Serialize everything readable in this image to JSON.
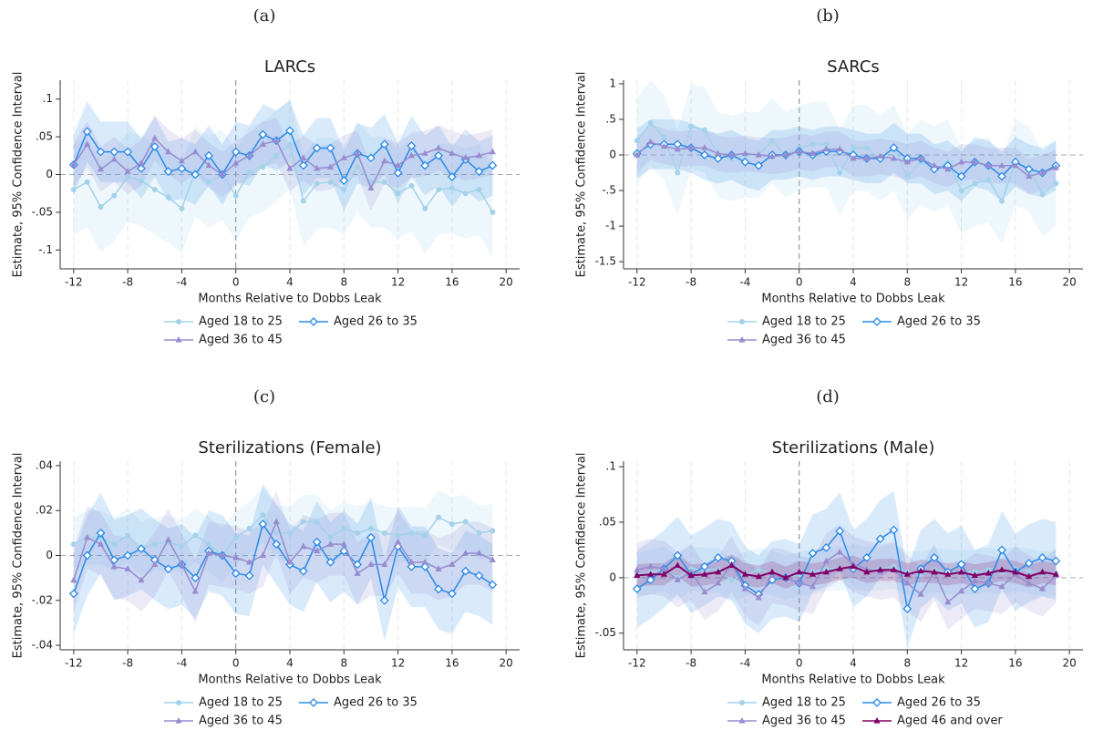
{
  "chart_data": [
    {
      "type": "line",
      "label": "(a)",
      "title": "LARCs",
      "xlabel": "Months Relative to Dobbs Leak",
      "ylabel": "Estimate, 95% Confidence Interval",
      "x": [
        -12,
        -11,
        -10,
        -9,
        -8,
        -7,
        -6,
        -5,
        -4,
        -3,
        -2,
        -1,
        0,
        1,
        2,
        3,
        4,
        5,
        6,
        7,
        8,
        9,
        10,
        11,
        12,
        13,
        14,
        15,
        16,
        17,
        18,
        19
      ],
      "xlim": [
        -13,
        21
      ],
      "xticks": [
        -12,
        -8,
        -4,
        0,
        4,
        8,
        12,
        16,
        20
      ],
      "ylim": [
        -0.125,
        0.125
      ],
      "yticks": [
        {
          "value": -0.1,
          "label": "-.1"
        },
        {
          "value": -0.05,
          "label": "-.05"
        },
        0,
        {
          "value": 0.05,
          "label": ".05"
        },
        {
          "value": 0.1,
          "label": ".1"
        }
      ],
      "vline": 0,
      "hline": 0,
      "grid": "x",
      "legend": "bottom",
      "series": [
        {
          "name": "Aged 18 to 25",
          "color": "#a3d2ea",
          "marker": "circle",
          "ci_halfwidth": 0.06,
          "values": [
            -0.02,
            -0.01,
            -0.043,
            -0.028,
            -0.003,
            -0.008,
            -0.02,
            -0.03,
            -0.045,
            0.004,
            -0.01,
            0,
            -0.028,
            0.003,
            0.01,
            0.025,
            0.04,
            -0.035,
            -0.012,
            -0.01,
            -0.02,
            0.01,
            -0.01,
            -0.01,
            -0.025,
            -0.015,
            -0.045,
            -0.02,
            -0.018,
            -0.025,
            -0.02,
            -0.05
          ]
        },
        {
          "name": "Aged 26 to 35",
          "color": "#2a8ae8",
          "marker": "diamond",
          "ci_halfwidth": 0.04,
          "values": [
            0.013,
            0.057,
            0.03,
            0.03,
            0.03,
            0.008,
            0.037,
            0.004,
            0.008,
            0,
            0.025,
            0,
            0.03,
            0.025,
            0.053,
            0.045,
            0.058,
            0.012,
            0.035,
            0.035,
            -0.008,
            0.028,
            0.022,
            0.04,
            0.002,
            0.038,
            0.012,
            0.025,
            -0.003,
            0.02,
            0.004,
            0.012
          ]
        },
        {
          "name": "Aged 36 to 45",
          "color": "#978cd0",
          "marker": "triangle",
          "ci_halfwidth": 0.03,
          "values": [
            0.013,
            0.04,
            0.007,
            0.02,
            0.004,
            0.015,
            0.048,
            0.03,
            0.018,
            0.03,
            0.012,
            0,
            0.015,
            0.025,
            0.04,
            0.045,
            0.008,
            0.022,
            0.008,
            0.01,
            0.022,
            0.028,
            -0.018,
            0.018,
            0.012,
            0.025,
            0.028,
            0.035,
            0.028,
            0.022,
            0.025,
            0.03
          ]
        }
      ]
    },
    {
      "type": "line",
      "label": "(b)",
      "title": "SARCs",
      "xlabel": "Months Relative to Dobbs Leak",
      "ylabel": "Estimate, 95% Confidence Interval",
      "x": [
        -12,
        -11,
        -10,
        -9,
        -8,
        -7,
        -6,
        -5,
        -4,
        -3,
        -2,
        -1,
        0,
        1,
        2,
        3,
        4,
        5,
        6,
        7,
        8,
        9,
        10,
        11,
        12,
        13,
        14,
        15,
        16,
        17,
        18,
        19
      ],
      "xlim": [
        -13,
        21
      ],
      "xticks": [
        -12,
        -8,
        -4,
        0,
        4,
        8,
        12,
        16,
        20
      ],
      "ylim": [
        -1.6,
        1.05
      ],
      "yticks": [
        -1.5,
        -1,
        {
          "value": -0.5,
          "label": "-.5"
        },
        0,
        {
          "value": 0.5,
          "label": ".5"
        },
        1
      ],
      "vline": 0,
      "hline": 0,
      "grid": "x",
      "legend": "bottom",
      "series": [
        {
          "name": "Aged 18 to 25",
          "color": "#a3d2ea",
          "marker": "circle",
          "ci_halfwidth": 0.6,
          "values": [
            0.2,
            0.45,
            0.25,
            -0.25,
            0.4,
            0.35,
            0,
            -0.05,
            0,
            0,
            0.2,
            0,
            0.1,
            0.15,
            0.15,
            -0.25,
            0.1,
            0.1,
            -0.05,
            0.1,
            -0.3,
            -0.1,
            -0.2,
            -0.1,
            -0.5,
            -0.4,
            -0.35,
            -0.65,
            -0.1,
            -0.2,
            -0.55,
            -0.4
          ]
        },
        {
          "name": "Aged 26 to 35",
          "color": "#2a8ae8",
          "marker": "diamond",
          "ci_halfwidth": 0.35,
          "values": [
            0.02,
            0.15,
            0.15,
            0.15,
            0.1,
            0,
            -0.05,
            0,
            -0.1,
            -0.15,
            0,
            0,
            0.05,
            0,
            0.05,
            0.05,
            0,
            -0.05,
            -0.05,
            0.1,
            -0.05,
            -0.05,
            -0.2,
            -0.15,
            -0.3,
            -0.1,
            -0.15,
            -0.3,
            -0.1,
            -0.2,
            -0.25,
            -0.15
          ]
        },
        {
          "name": "Aged 36 to 45",
          "color": "#978cd0",
          "marker": "triangle",
          "ci_halfwidth": 0.25,
          "values": [
            0,
            0.18,
            0.12,
            0.08,
            0.1,
            0.1,
            0.02,
            0,
            0.02,
            0,
            -0.02,
            0,
            0.05,
            0.02,
            0.08,
            0.08,
            -0.05,
            -0.05,
            -0.02,
            -0.05,
            -0.1,
            -0.05,
            -0.15,
            -0.2,
            -0.1,
            -0.1,
            -0.15,
            -0.15,
            -0.15,
            -0.3,
            -0.25,
            -0.18
          ]
        }
      ]
    },
    {
      "type": "line",
      "label": "(c)",
      "title": "Sterilizations (Female)",
      "xlabel": "Months Relative to Dobbs Leak",
      "ylabel": "Estimate, 95% Confidence Interval",
      "x": [
        -12,
        -11,
        -10,
        -9,
        -8,
        -7,
        -6,
        -5,
        -4,
        -3,
        -2,
        -1,
        0,
        1,
        2,
        3,
        4,
        5,
        6,
        7,
        8,
        9,
        10,
        11,
        12,
        13,
        14,
        15,
        16,
        17,
        18,
        19
      ],
      "xlim": [
        -13,
        21
      ],
      "xticks": [
        -12,
        -8,
        -4,
        0,
        4,
        8,
        12,
        16,
        20
      ],
      "ylim": [
        -0.042,
        0.042
      ],
      "yticks": [
        {
          "value": -0.04,
          "label": "-.04"
        },
        {
          "value": -0.02,
          "label": "-.02"
        },
        0,
        {
          "value": 0.02,
          "label": ".02"
        },
        {
          "value": 0.04,
          "label": ".04"
        }
      ],
      "vline": 0,
      "hline": 0,
      "grid": "x",
      "legend": "bottom",
      "series": [
        {
          "name": "Aged 18 to 25",
          "color": "#a3d2ea",
          "marker": "circle",
          "ci_halfwidth": 0.012,
          "values": [
            0.005,
            0.008,
            0.008,
            0.005,
            0.009,
            0.003,
            0.005,
            0.006,
            0.004,
            0.009,
            0.005,
            0,
            0.008,
            0.012,
            0.018,
            0.01,
            0.01,
            0.015,
            0.015,
            0.008,
            0.012,
            0.01,
            0.012,
            0.01,
            0.009,
            0.01,
            0.009,
            0.017,
            0.014,
            0.015,
            0.01,
            0.011
          ]
        },
        {
          "name": "Aged 26 to 35",
          "color": "#2a8ae8",
          "marker": "diamond",
          "ci_halfwidth": 0.018,
          "values": [
            -0.017,
            0,
            0.01,
            -0.002,
            0,
            0.003,
            -0.002,
            -0.006,
            -0.004,
            -0.01,
            0.002,
            0,
            -0.008,
            -0.009,
            0.014,
            0.005,
            -0.004,
            -0.007,
            0.006,
            -0.003,
            0.002,
            -0.004,
            0.008,
            -0.02,
            0.004,
            -0.005,
            -0.005,
            -0.015,
            -0.017,
            -0.007,
            -0.009,
            -0.013
          ]
        },
        {
          "name": "Aged 36 to 45",
          "color": "#978cd0",
          "marker": "triangle",
          "ci_halfwidth": 0.014,
          "values": [
            -0.011,
            0.008,
            0.005,
            -0.005,
            -0.006,
            -0.011,
            -0.004,
            0.007,
            -0.004,
            -0.016,
            0.001,
            0,
            -0.001,
            -0.003,
            0,
            0.015,
            -0.003,
            0.004,
            0.002,
            0.005,
            0.005,
            -0.008,
            -0.004,
            -0.004,
            0.006,
            -0.003,
            -0.003,
            -0.006,
            -0.004,
            0.001,
            0.001,
            -0.002
          ]
        }
      ]
    },
    {
      "type": "line",
      "label": "(d)",
      "title": "Sterilizations (Male)",
      "xlabel": "Months Relative to Dobbs Leak",
      "ylabel": "Estimate, 95% Confidence Interval",
      "x": [
        -12,
        -11,
        -10,
        -9,
        -8,
        -7,
        -6,
        -5,
        -4,
        -3,
        -2,
        -1,
        0,
        1,
        2,
        3,
        4,
        5,
        6,
        7,
        8,
        9,
        10,
        11,
        12,
        13,
        14,
        15,
        16,
        17,
        18,
        19
      ],
      "xlim": [
        -13,
        21
      ],
      "xticks": [
        -12,
        -8,
        -4,
        0,
        4,
        8,
        12,
        16,
        20
      ],
      "ylim": [
        -0.065,
        0.105
      ],
      "yticks": [
        {
          "value": -0.05,
          "label": "-.05"
        },
        0,
        {
          "value": 0.05,
          "label": ".05"
        },
        {
          "value": 0.1,
          "label": ".1"
        }
      ],
      "vline": 0,
      "hline": 0,
      "grid": "x",
      "legend": "bottom",
      "series": [
        {
          "name": "Aged 18 to 25",
          "color": "#a3d2ea",
          "marker": "circle",
          "ci_halfwidth": 0.02,
          "values": [
            0.003,
            0.005,
            0.008,
            0,
            0.008,
            0.007,
            0.007,
            -0.002,
            0.003,
            0.007,
            0.004,
            0,
            0.003,
            0.005,
            0.008,
            0.008,
            0.01,
            0.008,
            0.008,
            0.01,
            0.005,
            0.003,
            0.007,
            0.005,
            0.005,
            0.005,
            0.007,
            0.005,
            0.008,
            0.006,
            0.004,
            0.004
          ]
        },
        {
          "name": "Aged 26 to 35",
          "color": "#2a8ae8",
          "marker": "diamond",
          "ci_halfwidth": 0.035,
          "values": [
            -0.01,
            -0.002,
            0.008,
            0.02,
            0.003,
            0.01,
            0.018,
            0.015,
            -0.007,
            -0.015,
            -0.002,
            0,
            -0.005,
            0.022,
            0.027,
            0.042,
            0.008,
            0.018,
            0.035,
            0.043,
            -0.028,
            0.008,
            0.018,
            0.005,
            0.012,
            -0.01,
            -0.005,
            0.025,
            0.005,
            0.013,
            0.018,
            0.015
          ]
        },
        {
          "name": "Aged 36 to 45",
          "color": "#978cd0",
          "marker": "triangle",
          "ci_halfwidth": 0.025,
          "values": [
            0.007,
            0.01,
            0.008,
            -0.002,
            0.005,
            -0.013,
            -0.005,
            0.012,
            -0.01,
            -0.018,
            0.002,
            0,
            -0.005,
            -0.008,
            0.015,
            0.023,
            0.012,
            0.008,
            0.005,
            0.007,
            -0.005,
            -0.015,
            0.005,
            -0.022,
            -0.012,
            -0.003,
            -0.005,
            -0.008,
            0.003,
            -0.005,
            -0.01,
            0.002
          ]
        },
        {
          "name": "Aged 46 and over",
          "color": "#800066",
          "marker": "triangle",
          "ci_halfwidth": 0.01,
          "values": [
            0.002,
            0.003,
            0.003,
            0.011,
            0.002,
            0.003,
            0.005,
            0.011,
            0.003,
            0.001,
            0.005,
            0,
            0.005,
            0.003,
            0.005,
            0.008,
            0.01,
            0.005,
            0.007,
            0.007,
            0.003,
            0.006,
            0.005,
            0.003,
            0.005,
            0.002,
            0.004,
            0.007,
            0.005,
            0.001,
            0.005,
            0.003
          ]
        }
      ]
    }
  ]
}
